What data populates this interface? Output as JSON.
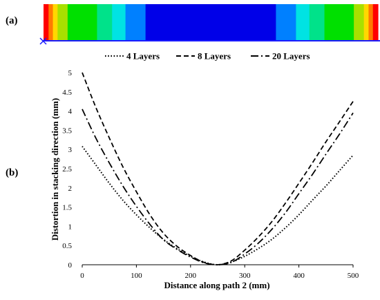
{
  "panels": {
    "a_label": "(a)",
    "b_label": "(b)"
  },
  "contour": {
    "bands": [
      {
        "color": "#ff0000",
        "from": 0.0,
        "to": 0.015
      },
      {
        "color": "#ff7a00",
        "from": 0.015,
        "to": 0.028
      },
      {
        "color": "#ffd800",
        "from": 0.028,
        "to": 0.042
      },
      {
        "color": "#a8e000",
        "from": 0.042,
        "to": 0.072
      },
      {
        "color": "#00e000",
        "from": 0.072,
        "to": 0.16
      },
      {
        "color": "#00e28a",
        "from": 0.16,
        "to": 0.205
      },
      {
        "color": "#00e3e3",
        "from": 0.205,
        "to": 0.245
      },
      {
        "color": "#0080ff",
        "from": 0.245,
        "to": 0.305
      },
      {
        "color": "#0000e8",
        "from": 0.305,
        "to": 0.695
      },
      {
        "color": "#0080ff",
        "from": 0.695,
        "to": 0.755
      },
      {
        "color": "#00e3e3",
        "from": 0.755,
        "to": 0.795
      },
      {
        "color": "#00e28a",
        "from": 0.795,
        "to": 0.84
      },
      {
        "color": "#00e000",
        "from": 0.84,
        "to": 0.928
      },
      {
        "color": "#a8e000",
        "from": 0.928,
        "to": 0.958
      },
      {
        "color": "#ffd800",
        "from": 0.958,
        "to": 0.972
      },
      {
        "color": "#ff7a00",
        "from": 0.972,
        "to": 0.985
      },
      {
        "color": "#ff0000",
        "from": 0.985,
        "to": 1.0
      }
    ]
  },
  "chart_data": {
    "type": "line",
    "xlabel": "Distance along path 2 (mm)",
    "ylabel": "Distortion in stacking direction (mm)",
    "xlim": [
      0,
      500
    ],
    "ylim": [
      0,
      5
    ],
    "xticks": [
      "0",
      "100",
      "200",
      "300",
      "400",
      "500"
    ],
    "yticks": [
      "0",
      "0.5",
      "1",
      "1.5",
      "2",
      "2.5",
      "3",
      "3.5",
      "4",
      "4.5",
      "5"
    ],
    "grid": false,
    "legend_position": "top",
    "x": [
      0,
      25,
      50,
      75,
      100,
      125,
      150,
      175,
      200,
      225,
      250,
      275,
      300,
      325,
      350,
      375,
      400,
      425,
      450,
      475,
      500
    ],
    "series": [
      {
        "name": "4 Layers",
        "line_style": "dotted",
        "values": [
          3.08,
          2.6,
          2.12,
          1.68,
          1.3,
          0.96,
          0.66,
          0.42,
          0.22,
          0.07,
          0.0,
          0.07,
          0.22,
          0.42,
          0.66,
          0.96,
          1.3,
          1.68,
          2.05,
          2.45,
          2.85
        ]
      },
      {
        "name": "8 Layers",
        "line_style": "dashed",
        "values": [
          5.0,
          4.1,
          3.3,
          2.55,
          1.9,
          1.3,
          0.82,
          0.48,
          0.24,
          0.06,
          0.0,
          0.1,
          0.38,
          0.72,
          1.12,
          1.6,
          2.12,
          2.65,
          3.2,
          3.72,
          4.25
        ]
      },
      {
        "name": "20 Layers",
        "line_style": "dash-dot",
        "values": [
          4.05,
          3.3,
          2.65,
          2.05,
          1.52,
          1.05,
          0.65,
          0.4,
          0.2,
          0.05,
          0.0,
          0.06,
          0.28,
          0.56,
          0.92,
          1.35,
          1.85,
          2.35,
          2.88,
          3.4,
          3.95
        ]
      }
    ]
  }
}
